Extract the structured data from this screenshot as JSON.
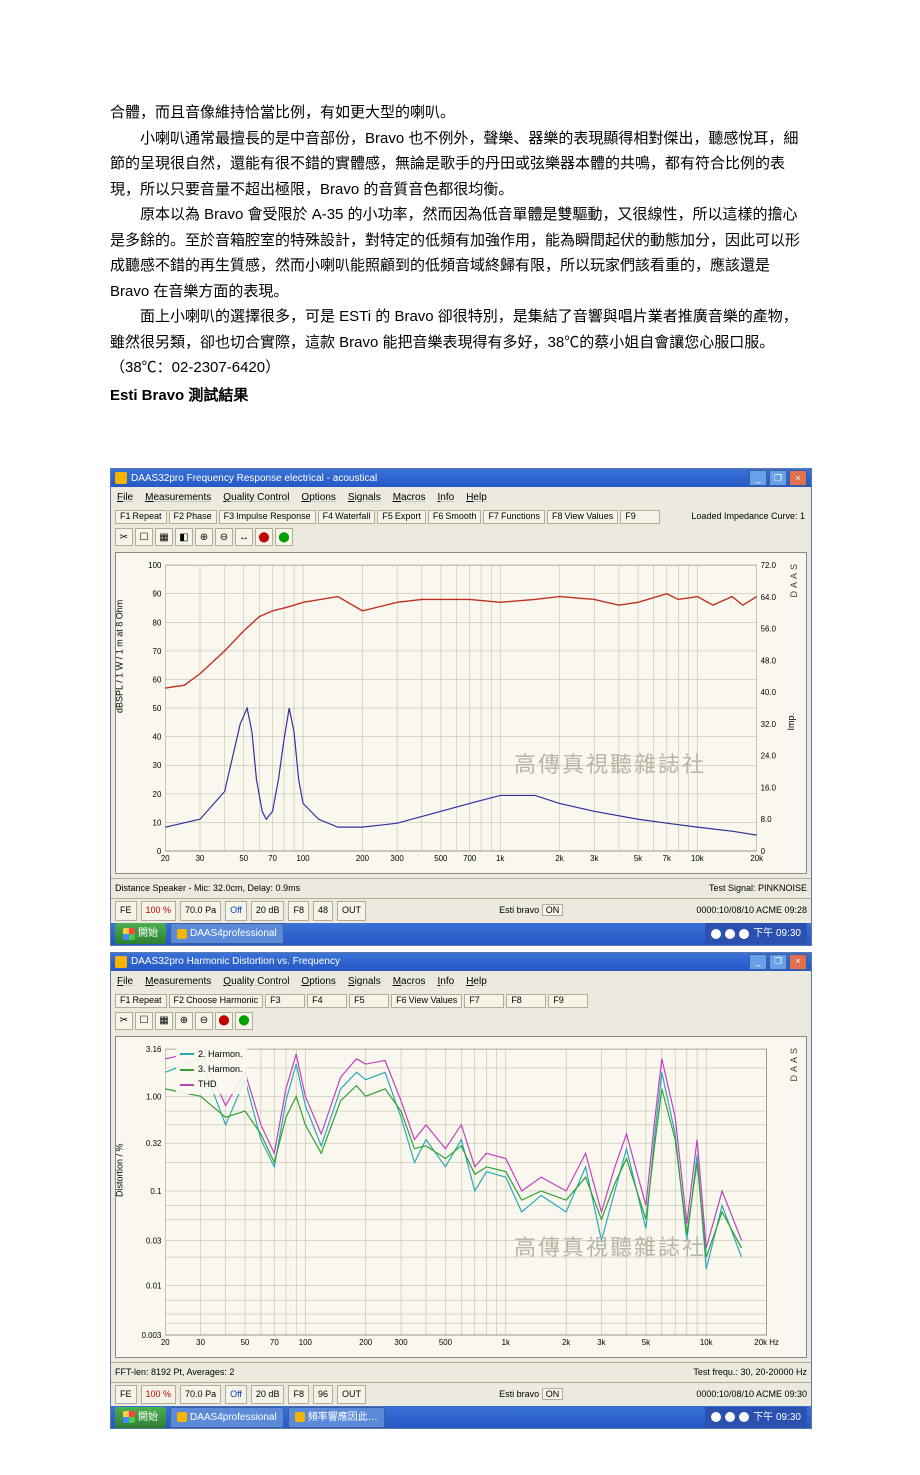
{
  "text": {
    "p0": "合體，而且音像維持恰當比例，有如更大型的喇叭。",
    "p1": "小喇叭通常最擅長的是中音部份，Bravo 也不例外，聲樂、器樂的表現顯得相對傑出，聽感悅耳，細節的呈現很自然，還能有很不錯的實體感，無論是歌手的丹田或弦樂器本體的共鳴，都有符合比例的表現，所以只要音量不超出極限，Bravo 的音質音色都很均衡。",
    "p2": "原本以為 Bravo 會受限於 A-35 的小功率，然而因為低音單體是雙驅動，又很線性，所以這樣的擔心是多餘的。至於音箱腔室的特殊設計，對特定的低頻有加強作用，能為瞬間起伏的動態加分，因此可以形成聽感不錯的再生質感，然而小喇叭能照顧到的低頻音域終歸有限，所以玩家們該看重的，應該還是 Bravo 在音樂方面的表現。",
    "p3": "面上小喇叭的選擇很多，可是 ESTi 的 Bravo 卻很特別，是集結了音響與唱片業者推廣音樂的產物，雖然很另類，卻也切合實際，這款 Bravo 能把音樂表現得有多好，38℃的蔡小姐自會讓您心服口服。（38℃：02-2307-6420）",
    "heading": "Esti Bravo 測試結果",
    "watermark": "高傳真視聽雜誌社"
  },
  "chart1": {
    "window_title": "DAAS32pro Frequency Response electrical - acoustical",
    "menus": [
      "File",
      "Measurements",
      "Quality Control",
      "Options",
      "Signals",
      "Macros",
      "Info",
      "Help"
    ],
    "toolbar_buttons": [
      "F1 Repeat",
      "F2 Phase",
      "F3 Impulse Response",
      "F4 Waterfall",
      "F5 Export",
      "F6 Smooth",
      "F7 Functions",
      "F8 View Values",
      "F9"
    ],
    "right_label": "Loaded Impedance Curve: 1",
    "brand": "DAAS",
    "y_left_label": "dBSPL / 1 W / 1 m at 8 Ohm",
    "y_right_label": "Imp.",
    "y_left_ticks": [
      0,
      10,
      20,
      30,
      40,
      50,
      60,
      70,
      80,
      90,
      100
    ],
    "y_right_ticks": [
      0,
      8,
      16,
      24,
      32,
      40,
      48,
      56,
      64,
      72
    ],
    "x_ticks": [
      "20",
      "30",
      "50",
      "70",
      "100",
      "200",
      "300",
      "500",
      "700",
      "1k",
      "2k",
      "3k",
      "5k",
      "7k",
      "10k",
      "20k"
    ],
    "line_spl_color": "#c03020",
    "line_imp_color": "#3030a0",
    "grid_color": "#b8b4a0",
    "bg": "#f9f7ee",
    "spl": [
      [
        20,
        57
      ],
      [
        25,
        58
      ],
      [
        30,
        62
      ],
      [
        40,
        70
      ],
      [
        50,
        77
      ],
      [
        60,
        82
      ],
      [
        70,
        84
      ],
      [
        80,
        85
      ],
      [
        90,
        86
      ],
      [
        100,
        87
      ],
      [
        150,
        89
      ],
      [
        200,
        84
      ],
      [
        300,
        87
      ],
      [
        400,
        88
      ],
      [
        500,
        88
      ],
      [
        700,
        88
      ],
      [
        1000,
        87
      ],
      [
        1500,
        88
      ],
      [
        2000,
        89
      ],
      [
        3000,
        88
      ],
      [
        4000,
        86
      ],
      [
        5000,
        87
      ],
      [
        7000,
        90
      ],
      [
        8000,
        88
      ],
      [
        10000,
        89
      ],
      [
        12000,
        86
      ],
      [
        15000,
        89
      ],
      [
        17000,
        86
      ],
      [
        20000,
        89
      ]
    ],
    "imp": [
      [
        20,
        6
      ],
      [
        30,
        8
      ],
      [
        40,
        15
      ],
      [
        48,
        32
      ],
      [
        52,
        36
      ],
      [
        55,
        30
      ],
      [
        58,
        18
      ],
      [
        62,
        10
      ],
      [
        65,
        8
      ],
      [
        70,
        10
      ],
      [
        75,
        18
      ],
      [
        80,
        28
      ],
      [
        85,
        36
      ],
      [
        90,
        30
      ],
      [
        95,
        18
      ],
      [
        100,
        12
      ],
      [
        120,
        8
      ],
      [
        150,
        6
      ],
      [
        200,
        6
      ],
      [
        300,
        7
      ],
      [
        500,
        10
      ],
      [
        700,
        12
      ],
      [
        1000,
        14
      ],
      [
        1500,
        14
      ],
      [
        2000,
        12
      ],
      [
        3000,
        10
      ],
      [
        5000,
        8
      ],
      [
        7000,
        7
      ],
      [
        10000,
        6
      ],
      [
        15000,
        5
      ],
      [
        20000,
        4
      ]
    ],
    "status_left": "Distance Speaker - Mic: 32.0cm, Delay: 0.9ms",
    "status_right": "Test Signal: PINKNOISE",
    "status_items": [
      "FE",
      "100 %",
      "70.0 Pa",
      "Off",
      "20 dB",
      "F8",
      "48",
      "OUT"
    ],
    "status_center": "Esti bravo",
    "status_far_right": "0000:10/08/10  ACME 09:28",
    "taskbar_start": "開始",
    "taskbar_items": [
      "DAAS4professional"
    ],
    "taskbar_time": "下午 09:30"
  },
  "chart2": {
    "window_title": "DAAS32pro Harmonic Distortion vs. Frequency",
    "menus": [
      "File",
      "Measurements",
      "Quality Control",
      "Options",
      "Signals",
      "Macros",
      "Info",
      "Help"
    ],
    "toolbar_buttons": [
      "F1 Repeat",
      "F2 Choose Harmonic",
      "F3",
      "F4",
      "F5",
      "F6 View Values",
      "F7",
      "F8",
      "F9"
    ],
    "brand": "DAAS",
    "legend": [
      {
        "label": "2. Harmon.",
        "color": "#2aa8b8"
      },
      {
        "label": "3. Harmon.",
        "color": "#30a030"
      },
      {
        "label": "THD",
        "color": "#c040c0"
      }
    ],
    "y_left_label": "Distortion / %",
    "y_ticks": [
      "0.003",
      "0.01",
      "0.03",
      "0.1",
      "0.32",
      "1.00",
      "3.16"
    ],
    "x_ticks": [
      "20",
      "30",
      "50",
      "70",
      "100",
      "200",
      "300",
      "500",
      "1k",
      "2k",
      "3k",
      "5k",
      "10k",
      "20k Hz"
    ],
    "grid_color": "#b8b4a0",
    "bg": "#f9f7ee",
    "thd": [
      [
        20,
        2.5
      ],
      [
        30,
        3.0
      ],
      [
        40,
        0.8
      ],
      [
        50,
        1.8
      ],
      [
        60,
        0.5
      ],
      [
        70,
        0.25
      ],
      [
        80,
        1.2
      ],
      [
        90,
        2.8
      ],
      [
        100,
        1.0
      ],
      [
        120,
        0.4
      ],
      [
        150,
        1.6
      ],
      [
        180,
        2.5
      ],
      [
        200,
        2.2
      ],
      [
        250,
        2.4
      ],
      [
        300,
        0.9
      ],
      [
        350,
        0.35
      ],
      [
        400,
        0.5
      ],
      [
        500,
        0.28
      ],
      [
        600,
        0.5
      ],
      [
        700,
        0.18
      ],
      [
        800,
        0.25
      ],
      [
        1000,
        0.22
      ],
      [
        1200,
        0.1
      ],
      [
        1500,
        0.14
      ],
      [
        2000,
        0.1
      ],
      [
        2500,
        0.25
      ],
      [
        3000,
        0.06
      ],
      [
        3500,
        0.18
      ],
      [
        4000,
        0.4
      ],
      [
        5000,
        0.07
      ],
      [
        5500,
        0.5
      ],
      [
        6000,
        2.5
      ],
      [
        7000,
        0.6
      ],
      [
        8000,
        0.045
      ],
      [
        9000,
        0.35
      ],
      [
        10000,
        0.025
      ],
      [
        12000,
        0.1
      ],
      [
        15000,
        0.03
      ]
    ],
    "h2": [
      [
        20,
        1.8
      ],
      [
        30,
        2.5
      ],
      [
        40,
        0.5
      ],
      [
        50,
        1.5
      ],
      [
        60,
        0.35
      ],
      [
        70,
        0.18
      ],
      [
        80,
        0.9
      ],
      [
        90,
        2.2
      ],
      [
        100,
        0.8
      ],
      [
        120,
        0.3
      ],
      [
        150,
        1.2
      ],
      [
        180,
        1.8
      ],
      [
        200,
        1.5
      ],
      [
        250,
        1.8
      ],
      [
        300,
        0.6
      ],
      [
        350,
        0.2
      ],
      [
        400,
        0.35
      ],
      [
        500,
        0.18
      ],
      [
        600,
        0.35
      ],
      [
        700,
        0.1
      ],
      [
        800,
        0.16
      ],
      [
        1000,
        0.14
      ],
      [
        1200,
        0.06
      ],
      [
        1500,
        0.09
      ],
      [
        2000,
        0.06
      ],
      [
        2500,
        0.18
      ],
      [
        3000,
        0.03
      ],
      [
        3500,
        0.1
      ],
      [
        4000,
        0.28
      ],
      [
        5000,
        0.04
      ],
      [
        5500,
        0.35
      ],
      [
        6000,
        1.8
      ],
      [
        7000,
        0.4
      ],
      [
        8000,
        0.03
      ],
      [
        9000,
        0.24
      ],
      [
        10000,
        0.015
      ],
      [
        12000,
        0.07
      ],
      [
        15000,
        0.02
      ]
    ],
    "h3": [
      [
        20,
        1.2
      ],
      [
        30,
        1.0
      ],
      [
        40,
        0.6
      ],
      [
        50,
        0.7
      ],
      [
        60,
        0.4
      ],
      [
        70,
        0.2
      ],
      [
        80,
        0.6
      ],
      [
        90,
        1.0
      ],
      [
        100,
        0.5
      ],
      [
        120,
        0.25
      ],
      [
        150,
        0.9
      ],
      [
        180,
        1.3
      ],
      [
        200,
        1.0
      ],
      [
        250,
        1.2
      ],
      [
        300,
        0.7
      ],
      [
        350,
        0.28
      ],
      [
        400,
        0.3
      ],
      [
        500,
        0.22
      ],
      [
        600,
        0.3
      ],
      [
        700,
        0.15
      ],
      [
        800,
        0.18
      ],
      [
        1000,
        0.16
      ],
      [
        1200,
        0.08
      ],
      [
        1500,
        0.1
      ],
      [
        2000,
        0.08
      ],
      [
        2500,
        0.14
      ],
      [
        3000,
        0.05
      ],
      [
        3500,
        0.12
      ],
      [
        4000,
        0.22
      ],
      [
        5000,
        0.05
      ],
      [
        5500,
        0.28
      ],
      [
        6000,
        1.2
      ],
      [
        7000,
        0.35
      ],
      [
        8000,
        0.035
      ],
      [
        9000,
        0.2
      ],
      [
        10000,
        0.02
      ],
      [
        12000,
        0.06
      ],
      [
        15000,
        0.025
      ]
    ],
    "status_left": "FFT-len: 8192 Pt, Averages: 2",
    "status_right": "Test frequ.: 30, 20-20000 Hz",
    "status_items": [
      "FE",
      "100 %",
      "70.0 Pa",
      "Off",
      "20 dB",
      "F8",
      "96",
      "OUT"
    ],
    "status_center": "Esti bravo",
    "status_far_right": "0000:10/08/10  ACME 09:30",
    "taskbar_start": "開始",
    "taskbar_items": [
      "DAAS4professional",
      "頻率響應因此…"
    ],
    "taskbar_time": "下午 09:30"
  }
}
